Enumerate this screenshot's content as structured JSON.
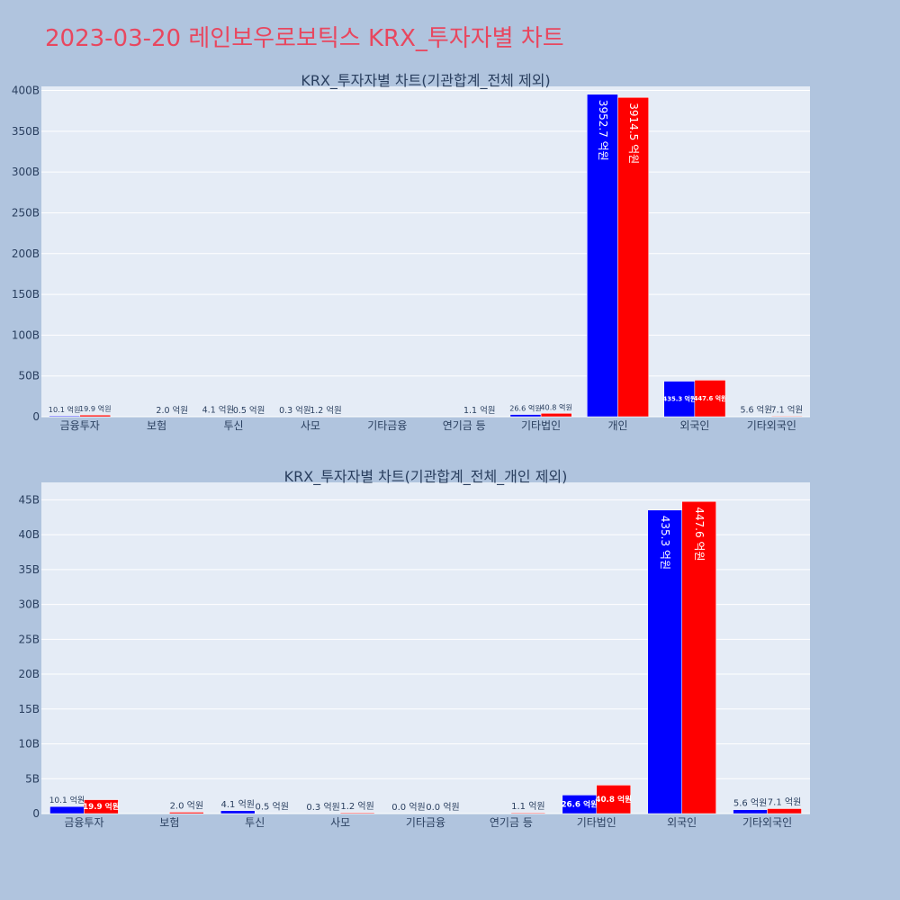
{
  "page": {
    "title": "2023-03-20 레인보우로보틱스 KRX_투자자별 차트"
  },
  "colors": {
    "background": "#b0c4de",
    "plot_background": "#e5ecf6",
    "series_blue": "#0000ff",
    "series_red": "#ff0000",
    "title": "#e8475f",
    "text": "#2a3f5f"
  },
  "chart_data": [
    {
      "type": "bar",
      "title": "KRX_투자자별 차트(기관합계_전체 제외)",
      "categories": [
        "금융투자",
        "보험",
        "투신",
        "사모",
        "기타금융",
        "연기금 등",
        "기타법인",
        "개인",
        "외국인",
        "기타외국인"
      ],
      "series": [
        {
          "color": "#0000ff",
          "values": [
            1010000000,
            null,
            410000000,
            30000000,
            null,
            null,
            2660000000,
            395270000000,
            43530000000,
            560000000
          ],
          "labels": [
            "10.1 억원",
            "",
            "4.1 억원",
            "0.3 억원",
            "",
            "",
            "26.6 억원",
            "3952.7 억원",
            "435.3 억원",
            "5.6 억원"
          ]
        },
        {
          "color": "#ff0000",
          "values": [
            1990000000,
            200000000,
            50000000,
            120000000,
            null,
            110000000,
            4080000000,
            391450000000,
            44760000000,
            710000000
          ],
          "labels": [
            "19.9 억원",
            "2.0 억원",
            "0.5 억원",
            "1.2 억원",
            "",
            "1.1 억원",
            "40.8 억원",
            "3914.5 억원",
            "447.6 억원",
            "7.1 억원"
          ]
        }
      ],
      "ylim": [
        0,
        405000000000
      ],
      "yticks": [
        0,
        50000000000,
        100000000000,
        150000000000,
        200000000000,
        250000000000,
        300000000000,
        350000000000,
        400000000000
      ],
      "ytick_labels": [
        "0",
        "50B",
        "100B",
        "150B",
        "200B",
        "250B",
        "300B",
        "350B",
        "400B"
      ],
      "grid": true,
      "legend": "none"
    },
    {
      "type": "bar",
      "title": "KRX_투자자별 차트(기관합계_전체_개인 제외)",
      "categories": [
        "금융투자",
        "보험",
        "투신",
        "사모",
        "기타금융",
        "연기금 등",
        "기타법인",
        "외국인",
        "기타외국인"
      ],
      "series": [
        {
          "color": "#0000ff",
          "values": [
            1010000000,
            null,
            410000000,
            30000000,
            0,
            null,
            2660000000,
            43530000000,
            560000000
          ],
          "labels": [
            "10.1 억원",
            "",
            "4.1 억원",
            "0.3 억원",
            "0.0 억원",
            "",
            "26.6 억원",
            "435.3 억원",
            "5.6 억원"
          ]
        },
        {
          "color": "#ff0000",
          "values": [
            1990000000,
            200000000,
            50000000,
            120000000,
            0,
            110000000,
            4080000000,
            44760000000,
            710000000
          ],
          "labels": [
            "19.9 억원",
            "2.0 억원",
            "0.5 억원",
            "1.2 억원",
            "0.0 억원",
            "1.1 억원",
            "40.8 억원",
            "447.6 억원",
            "7.1 억원"
          ]
        }
      ],
      "ylim": [
        0,
        47500000000
      ],
      "yticks": [
        0,
        5000000000,
        10000000000,
        15000000000,
        20000000000,
        25000000000,
        30000000000,
        35000000000,
        40000000000,
        45000000000
      ],
      "ytick_labels": [
        "0",
        "5B",
        "10B",
        "15B",
        "20B",
        "25B",
        "30B",
        "35B",
        "40B",
        "45B"
      ],
      "grid": true,
      "legend": "none"
    }
  ]
}
